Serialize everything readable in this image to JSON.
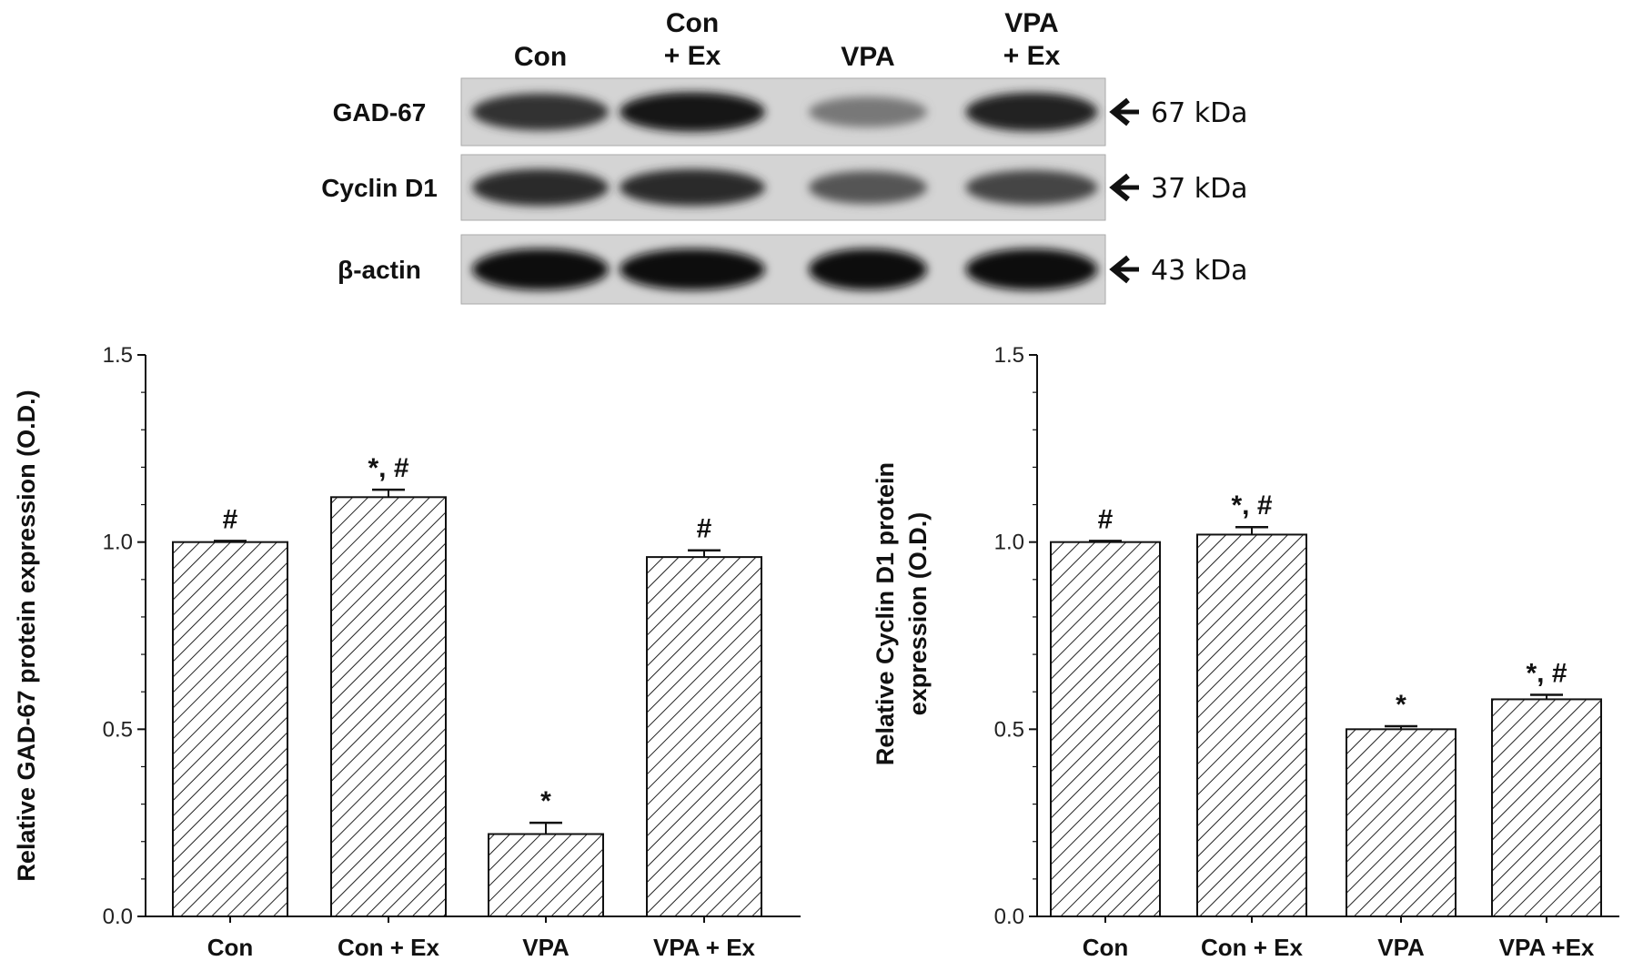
{
  "blot": {
    "lanes": [
      [
        "Con"
      ],
      [
        "Con",
        "+ Ex"
      ],
      [
        "VPA"
      ],
      [
        "VPA",
        "+ Ex"
      ]
    ],
    "rows": [
      {
        "protein": "GAD-67",
        "kda": "67  kDa",
        "intensity": [
          0.8,
          0.95,
          0.4,
          0.9
        ]
      },
      {
        "protein": "Cyclin D1",
        "kda": "37  kDa",
        "intensity": [
          0.85,
          0.85,
          0.6,
          0.7
        ]
      },
      {
        "protein": "β-actin",
        "kda": "43  kDa",
        "intensity": [
          1.0,
          1.0,
          1.0,
          1.0
        ]
      }
    ]
  },
  "chart_data": [
    {
      "type": "bar",
      "ylabel": [
        "Relative GAD-67 protein expression (O.D.)"
      ],
      "categories": [
        "Con",
        "Con + Ex",
        "VPA",
        "VPA + Ex"
      ],
      "values": [
        1.0,
        1.12,
        0.22,
        0.96
      ],
      "errors": [
        0.003,
        0.02,
        0.03,
        0.018
      ],
      "significance": [
        "#",
        "*, #",
        "*",
        "#"
      ],
      "ylim": [
        0,
        1.5
      ],
      "yticks": [
        "0.0",
        "0.5",
        "1.0",
        "1.5"
      ]
    },
    {
      "type": "bar",
      "ylabel": [
        "Relative Cyclin D1 protein",
        "expression (O.D.)"
      ],
      "categories": [
        "Con",
        "Con + Ex",
        "VPA",
        "VPA +Ex"
      ],
      "values": [
        1.0,
        1.02,
        0.5,
        0.58
      ],
      "errors": [
        0.003,
        0.02,
        0.008,
        0.012
      ],
      "significance": [
        "#",
        "*, #",
        "*",
        "*, #"
      ],
      "ylim": [
        0,
        1.5
      ],
      "yticks": [
        "0.0",
        "0.5",
        "1.0",
        "1.5"
      ]
    }
  ]
}
